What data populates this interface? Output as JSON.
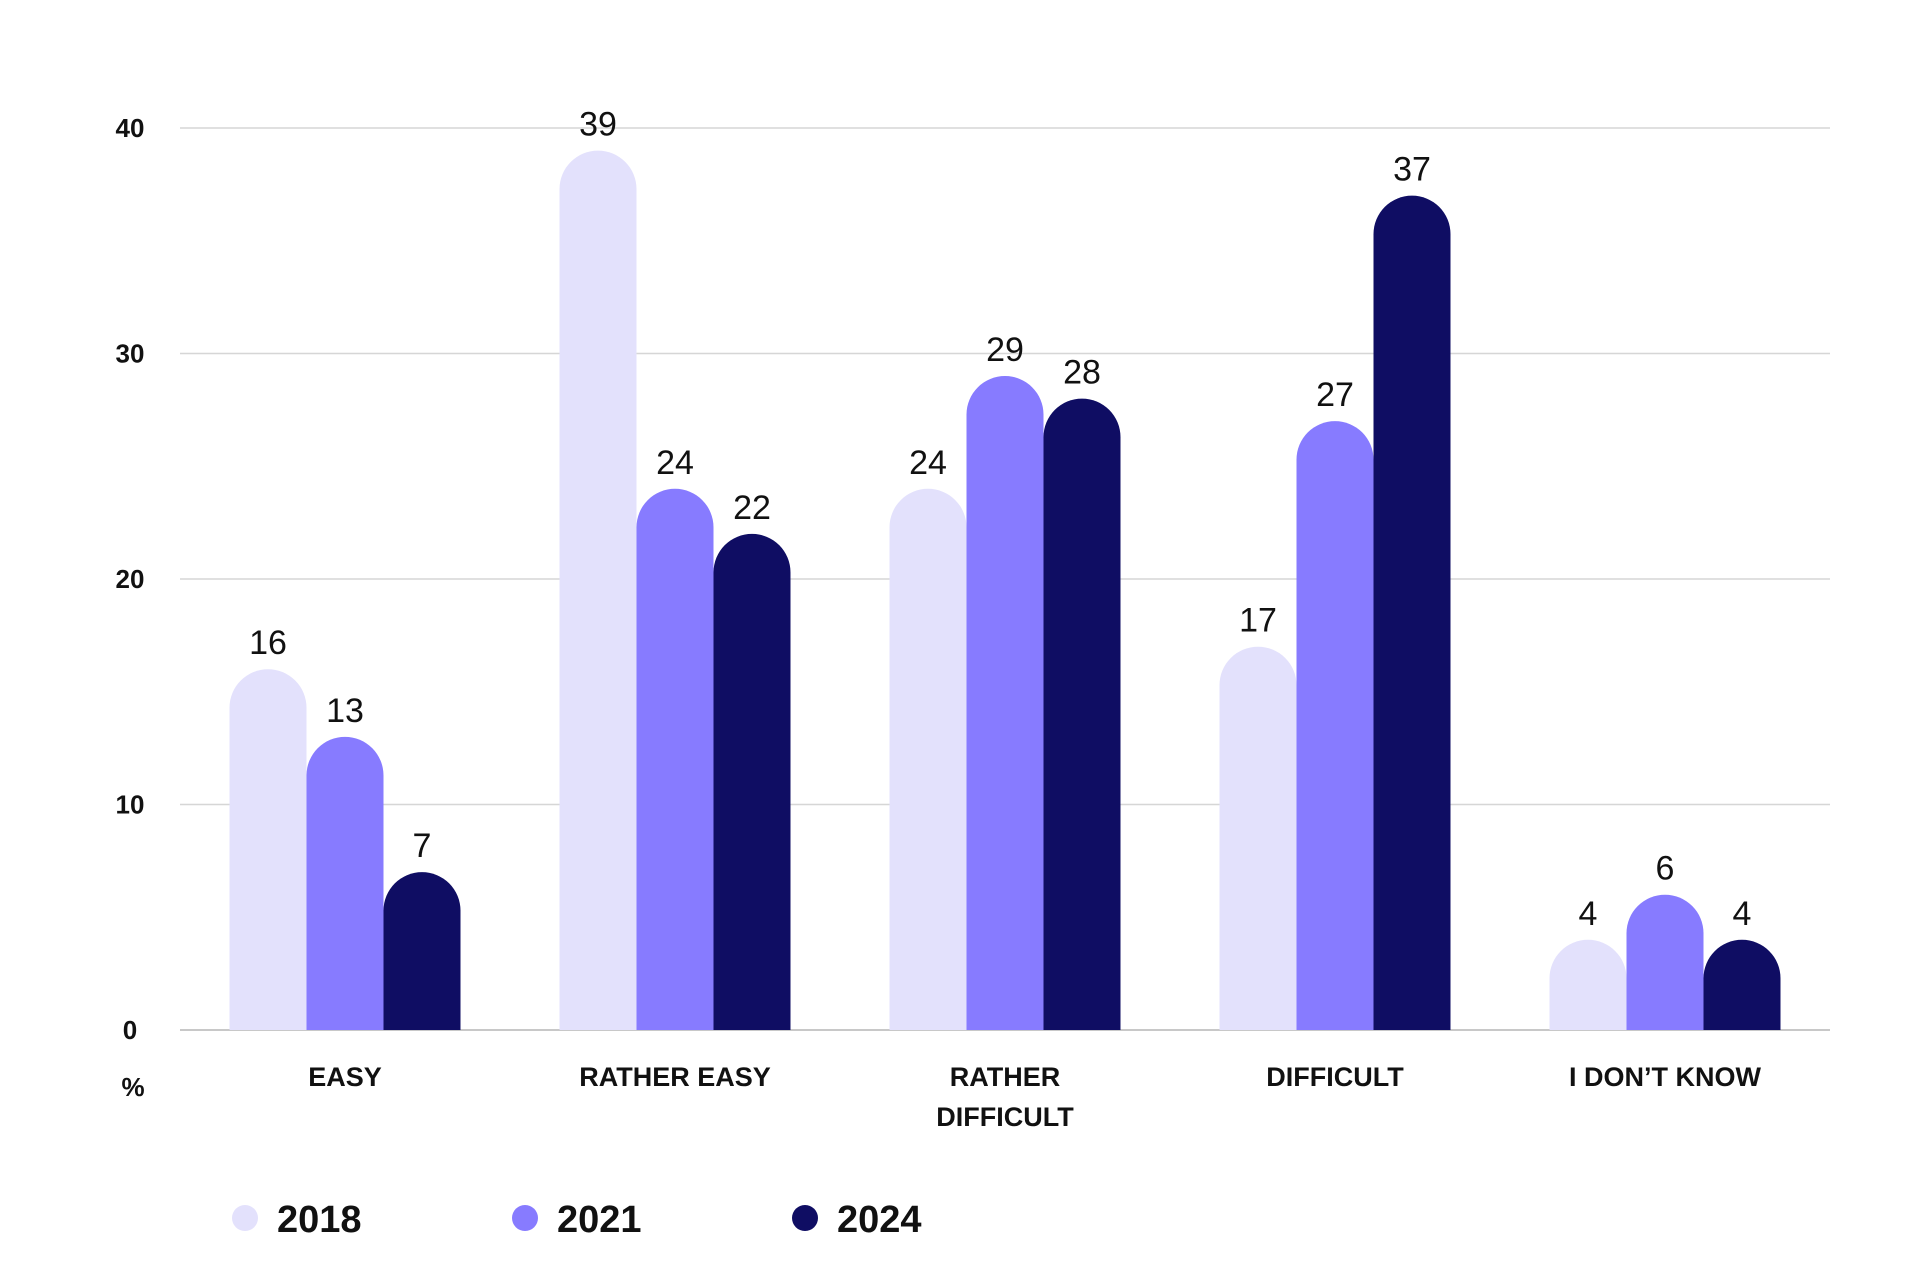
{
  "chart_data": {
    "type": "bar",
    "unit_label": "%",
    "categories": [
      [
        "EASY"
      ],
      [
        "RATHER EASY"
      ],
      [
        "RATHER",
        "DIFFICULT"
      ],
      [
        "DIFFICULT"
      ],
      [
        "I DON’T KNOW"
      ]
    ],
    "series": [
      {
        "name": "2018",
        "color": "#e3e1fc",
        "values": [
          16,
          39,
          24,
          17,
          4
        ]
      },
      {
        "name": "2021",
        "color": "#877bff",
        "values": [
          13,
          24,
          29,
          27,
          6
        ]
      },
      {
        "name": "2024",
        "color": "#0f0d63",
        "values": [
          7,
          22,
          28,
          37,
          4
        ]
      }
    ],
    "yticks": [
      0,
      10,
      20,
      30,
      40
    ],
    "ylim": [
      0,
      40
    ],
    "grid": true,
    "legend_position": "bottom-left"
  }
}
